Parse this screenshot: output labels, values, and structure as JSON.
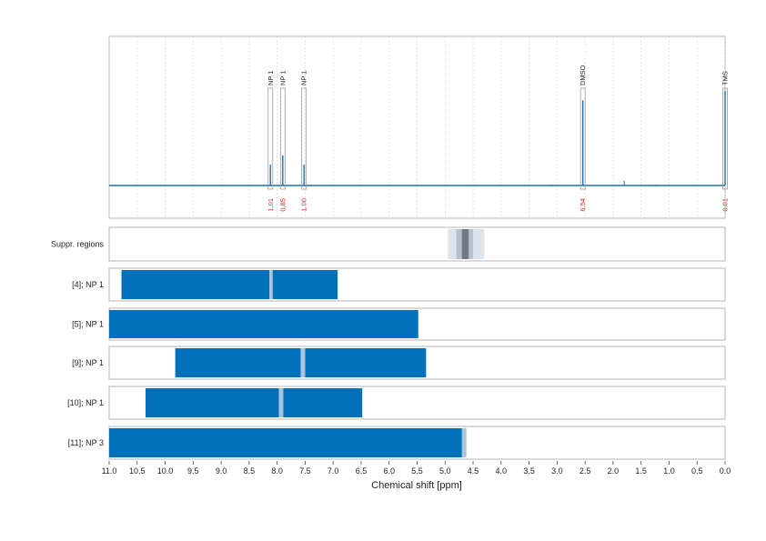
{
  "chart_data": {
    "type": "spectrum",
    "xlabel": "Chemical shift [ppm]",
    "xlim": [
      11.0,
      0.0
    ],
    "xticks": [
      "11.0",
      "10.5",
      "10.0",
      "9.5",
      "9.0",
      "8.5",
      "8.0",
      "7.5",
      "7.0",
      "6.5",
      "6.0",
      "5.5",
      "5.0",
      "4.5",
      "4.0",
      "3.5",
      "3.0",
      "2.5",
      "2.0",
      "1.5",
      "1.0",
      "0.5",
      "0.0"
    ],
    "spectrum": {
      "peaks": [
        {
          "label": "NP 1",
          "ppm": 8.12,
          "integral": "1.01",
          "height": 0.22
        },
        {
          "label": "NP 1",
          "ppm": 7.9,
          "integral": "0.85",
          "height": 0.32
        },
        {
          "label": "NP 1",
          "ppm": 7.52,
          "integral": "1.00",
          "height": 0.22
        },
        {
          "label": "DMSO",
          "ppm": 2.54,
          "integral": "6.54",
          "height": 0.9
        },
        {
          "label": "TMS",
          "ppm": 0.0,
          "integral": "0.01",
          "height": 1.0
        }
      ],
      "minor_peaks": [
        {
          "ppm": 1.8,
          "height": 0.05
        },
        {
          "ppm": 1.25,
          "height": 0.01
        },
        {
          "ppm": 3.1,
          "height": 0.01
        },
        {
          "ppm": 4.2,
          "height": 0.005
        }
      ],
      "colors": {
        "line": "#1f6fae",
        "integral": "#d62728"
      }
    },
    "tracks": [
      {
        "label": "Suppr. regions",
        "type": "suppression",
        "regions": [
          {
            "from": 4.95,
            "to": 4.3,
            "shade": "#dde3ea"
          },
          {
            "from": 4.8,
            "to": 4.5,
            "shade": "#b7c1cb"
          },
          {
            "from": 4.7,
            "to": 4.58,
            "shade": "#6e7a85"
          }
        ]
      },
      {
        "label": "[4]; NP 1",
        "bars": [
          {
            "from": 10.78,
            "to": 8.14
          },
          {
            "from": 8.08,
            "to": 6.92
          }
        ],
        "markers": [
          {
            "from": 8.14,
            "to": 8.08
          }
        ]
      },
      {
        "label": "[5]; NP 1",
        "bars": [
          {
            "from": 11.0,
            "to": 5.48
          }
        ],
        "markers": []
      },
      {
        "label": "[9]; NP 1",
        "bars": [
          {
            "from": 9.82,
            "to": 7.58
          },
          {
            "from": 7.5,
            "to": 5.34
          }
        ],
        "markers": [
          {
            "from": 7.58,
            "to": 7.5
          }
        ]
      },
      {
        "label": "[10]; NP 1",
        "bars": [
          {
            "from": 10.35,
            "to": 7.97
          },
          {
            "from": 7.89,
            "to": 6.48
          }
        ],
        "markers": [
          {
            "from": 7.97,
            "to": 7.89
          }
        ]
      },
      {
        "label": "[11]; NP 3",
        "bars": [
          {
            "from": 11.0,
            "to": 4.7
          }
        ],
        "markers": [
          {
            "from": 4.7,
            "to": 4.62
          }
        ]
      }
    ],
    "colors": {
      "bar": "#0070bb",
      "marker": "#a9c4db"
    }
  }
}
